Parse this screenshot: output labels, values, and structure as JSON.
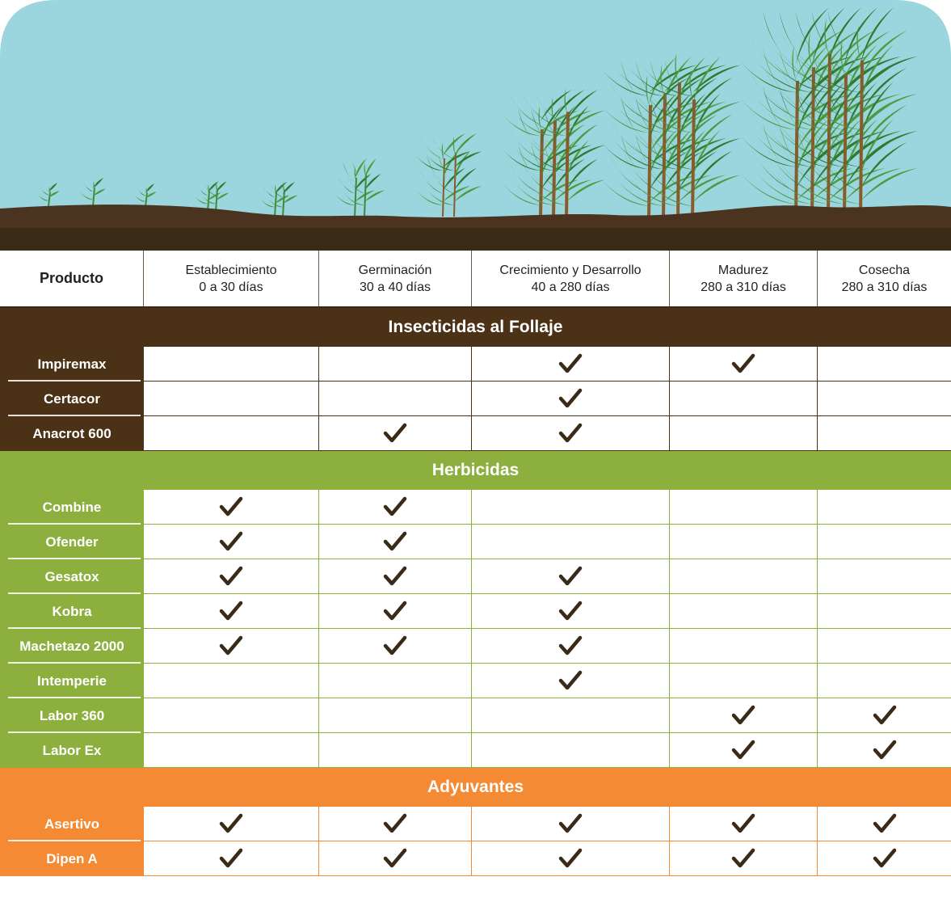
{
  "colors": {
    "sky": "#9bd6de",
    "soil_dark": "#3a2a18",
    "soil_mid": "#4a3420",
    "plant_green": "#3d8a3a",
    "insect_brown": "#4b3216",
    "herb_green": "#8daf3e",
    "adj_orange": "#f58a35",
    "check": "#3a2a18"
  },
  "icons": {
    "mark": "check-mark-icon"
  },
  "header": {
    "product_label": "Producto",
    "stages": [
      {
        "name": "Establecimiento",
        "days": "0 a 30 días"
      },
      {
        "name": "Germinación",
        "days": "30 a 40 días"
      },
      {
        "name": "Crecimiento y Desarrollo",
        "days": "40 a 280 días"
      },
      {
        "name": "Madurez",
        "days": "280 a 310 días"
      },
      {
        "name": "Cosecha",
        "days": "280 a 310 días"
      }
    ]
  },
  "sections": [
    {
      "title": "Insecticidas al Follaje",
      "color": "#4b3216",
      "line_color": "#4b3216",
      "products": [
        {
          "name": "Impiremax",
          "checks": [
            false,
            false,
            true,
            true,
            false
          ]
        },
        {
          "name": "Certacor",
          "checks": [
            false,
            false,
            true,
            false,
            false
          ]
        },
        {
          "name": "Anacrot 600",
          "checks": [
            false,
            true,
            true,
            false,
            false
          ]
        }
      ]
    },
    {
      "title": "Herbicidas",
      "color": "#8daf3e",
      "line_color": "#8daf3e",
      "products": [
        {
          "name": "Combine",
          "checks": [
            true,
            true,
            false,
            false,
            false
          ]
        },
        {
          "name": "Ofender",
          "checks": [
            true,
            true,
            false,
            false,
            false
          ]
        },
        {
          "name": "Gesatox",
          "checks": [
            true,
            true,
            true,
            false,
            false
          ]
        },
        {
          "name": "Kobra",
          "checks": [
            true,
            true,
            true,
            false,
            false
          ]
        },
        {
          "name": "Machetazo 2000",
          "checks": [
            true,
            true,
            true,
            false,
            false
          ]
        },
        {
          "name": "Intemperie",
          "checks": [
            false,
            false,
            true,
            false,
            false
          ]
        },
        {
          "name": "Labor 360",
          "checks": [
            false,
            false,
            false,
            true,
            true
          ]
        },
        {
          "name": "Labor Ex",
          "checks": [
            false,
            false,
            false,
            true,
            true
          ]
        }
      ]
    },
    {
      "title": "Adyuvantes",
      "color": "#f58a35",
      "line_color": "#f58a35",
      "products": [
        {
          "name": "Asertivo",
          "checks": [
            true,
            true,
            true,
            true,
            true
          ]
        },
        {
          "name": "Dipen A",
          "checks": [
            true,
            true,
            true,
            true,
            true
          ]
        }
      ]
    }
  ]
}
